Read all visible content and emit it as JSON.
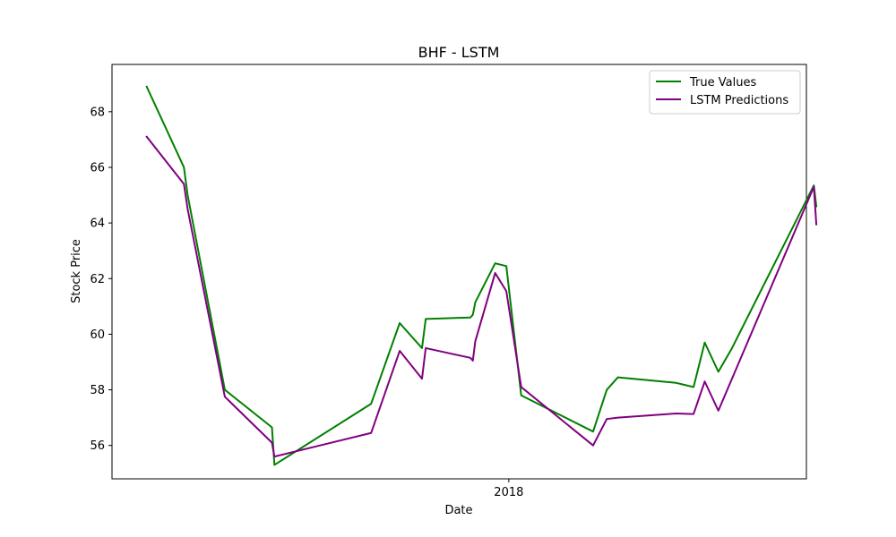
{
  "chart_data": {
    "type": "line",
    "title": "BHF - LSTM",
    "xlabel": "Date",
    "ylabel": "Stock Price",
    "ylim": [
      54.8,
      69.7
    ],
    "y_ticks": [
      56,
      58,
      60,
      62,
      64,
      66,
      68
    ],
    "x_ticks": [
      {
        "label": "2018",
        "x": 2018.0
      }
    ],
    "xlim": [
      2017.68,
      2018.24
    ],
    "grid": false,
    "legend_position": "top-right",
    "series": [
      {
        "name": "True Values",
        "color": "#008000",
        "x": [
          2017.708,
          2017.738,
          2017.741,
          2017.771,
          2017.809,
          2017.811,
          2017.889,
          2017.912,
          2017.93,
          2017.933,
          2017.969,
          2017.971,
          2017.973,
          2017.989,
          2017.998,
          2018.01,
          2018.068,
          2018.079,
          2018.088,
          2018.135,
          2018.149,
          2018.158,
          2018.169,
          2018.18,
          2018.246,
          2018.248
        ],
        "y": [
          68.9,
          66.0,
          65.0,
          58.0,
          56.65,
          55.3,
          57.5,
          60.4,
          59.5,
          60.55,
          60.6,
          60.7,
          61.15,
          62.55,
          62.45,
          57.8,
          56.5,
          58.0,
          58.45,
          58.25,
          58.1,
          59.7,
          58.65,
          59.5,
          65.35,
          64.6
        ]
      },
      {
        "name": "LSTM Predictions",
        "color": "#800080",
        "x": [
          2017.708,
          2017.738,
          2017.741,
          2017.771,
          2017.809,
          2017.811,
          2017.889,
          2017.912,
          2017.93,
          2017.933,
          2017.969,
          2017.971,
          2017.973,
          2017.989,
          2017.998,
          2018.01,
          2018.068,
          2018.079,
          2018.088,
          2018.135,
          2018.149,
          2018.158,
          2018.169,
          2018.18,
          2018.246,
          2018.248
        ],
        "y": [
          67.1,
          65.4,
          64.5,
          57.75,
          56.1,
          55.6,
          56.45,
          59.4,
          58.4,
          59.5,
          59.15,
          59.05,
          59.75,
          62.2,
          61.55,
          58.1,
          56.0,
          56.95,
          57.0,
          57.15,
          57.13,
          58.3,
          57.25,
          58.4,
          65.3,
          63.95
        ]
      }
    ]
  }
}
